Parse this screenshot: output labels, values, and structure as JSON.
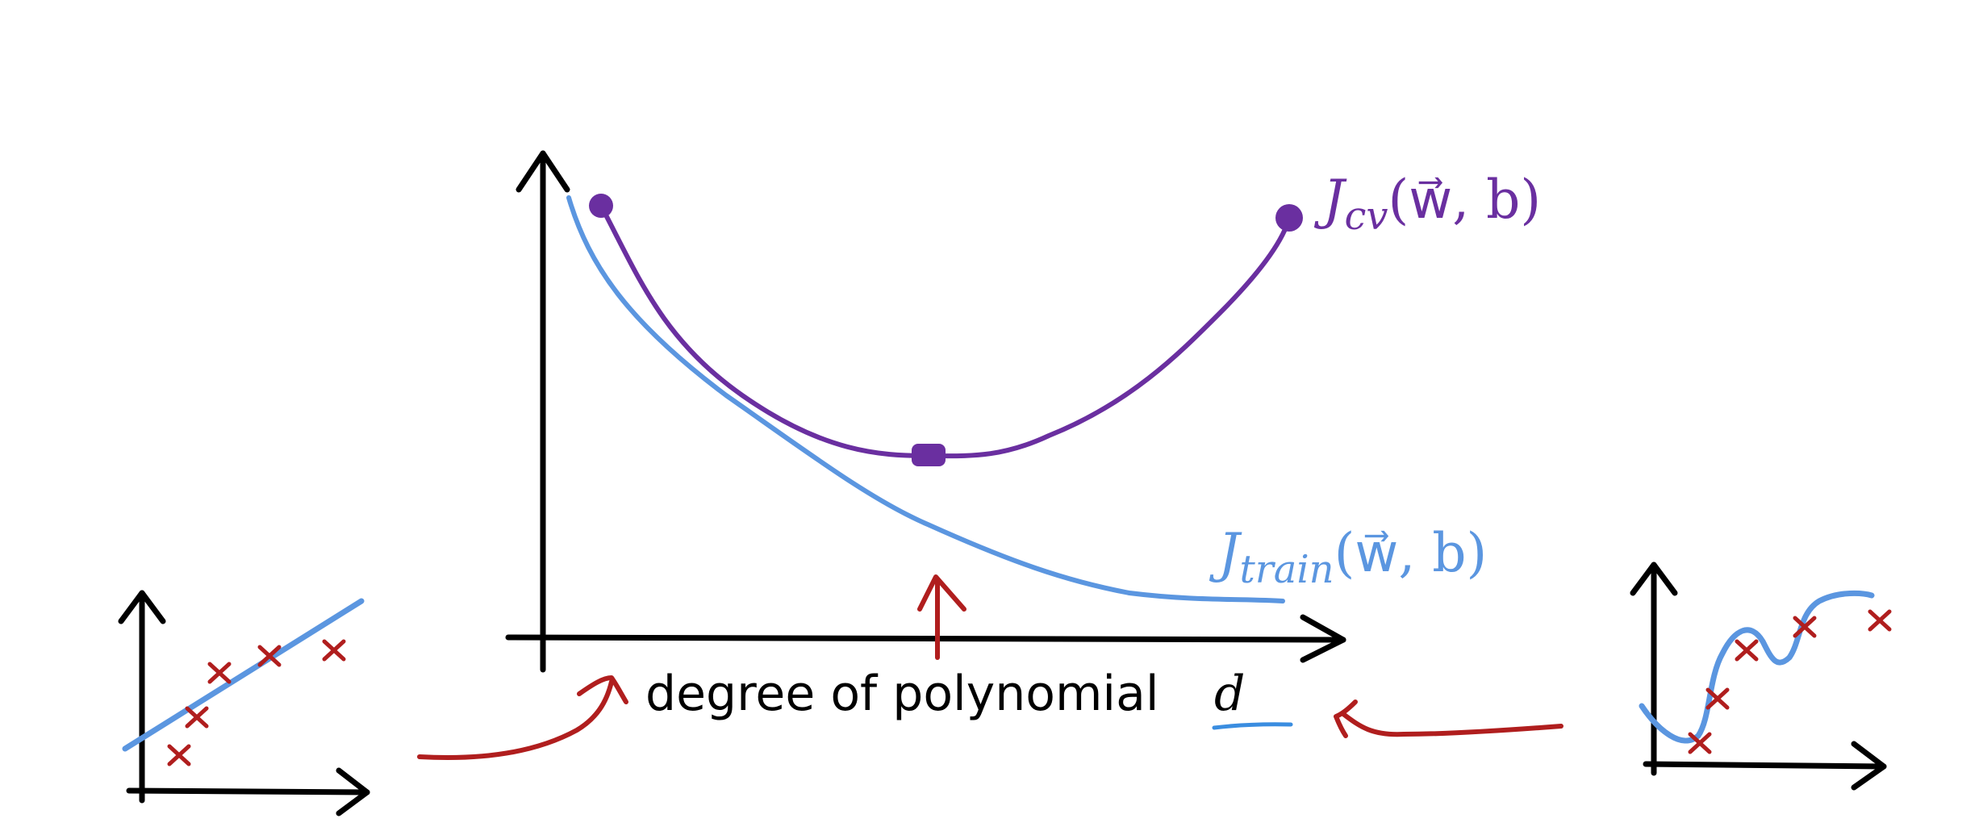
{
  "main_plot": {
    "x_axis_label": "degree of polynomial",
    "x_axis_variable": "d",
    "curves": {
      "cv": {
        "symbol": "J",
        "subscript": "cv",
        "args": "(w⃗, b)",
        "color": "#6a2fa0"
      },
      "train": {
        "symbol": "J",
        "subscript": "train",
        "args": "(w⃗, b)",
        "color": "#5b96e0"
      }
    }
  },
  "colors": {
    "axis": "#000000",
    "annotation_arrow": "#b01e1e",
    "data_point": "#b01e1e",
    "fit_line": "#5b96e0",
    "cv_curve": "#6a2fa0",
    "train_curve": "#5b96e0",
    "underline": "#3a8de0"
  },
  "left_inset": {
    "points_count": 5,
    "point_marker": "×"
  },
  "right_inset": {
    "points_count": 5,
    "point_marker": "×"
  }
}
